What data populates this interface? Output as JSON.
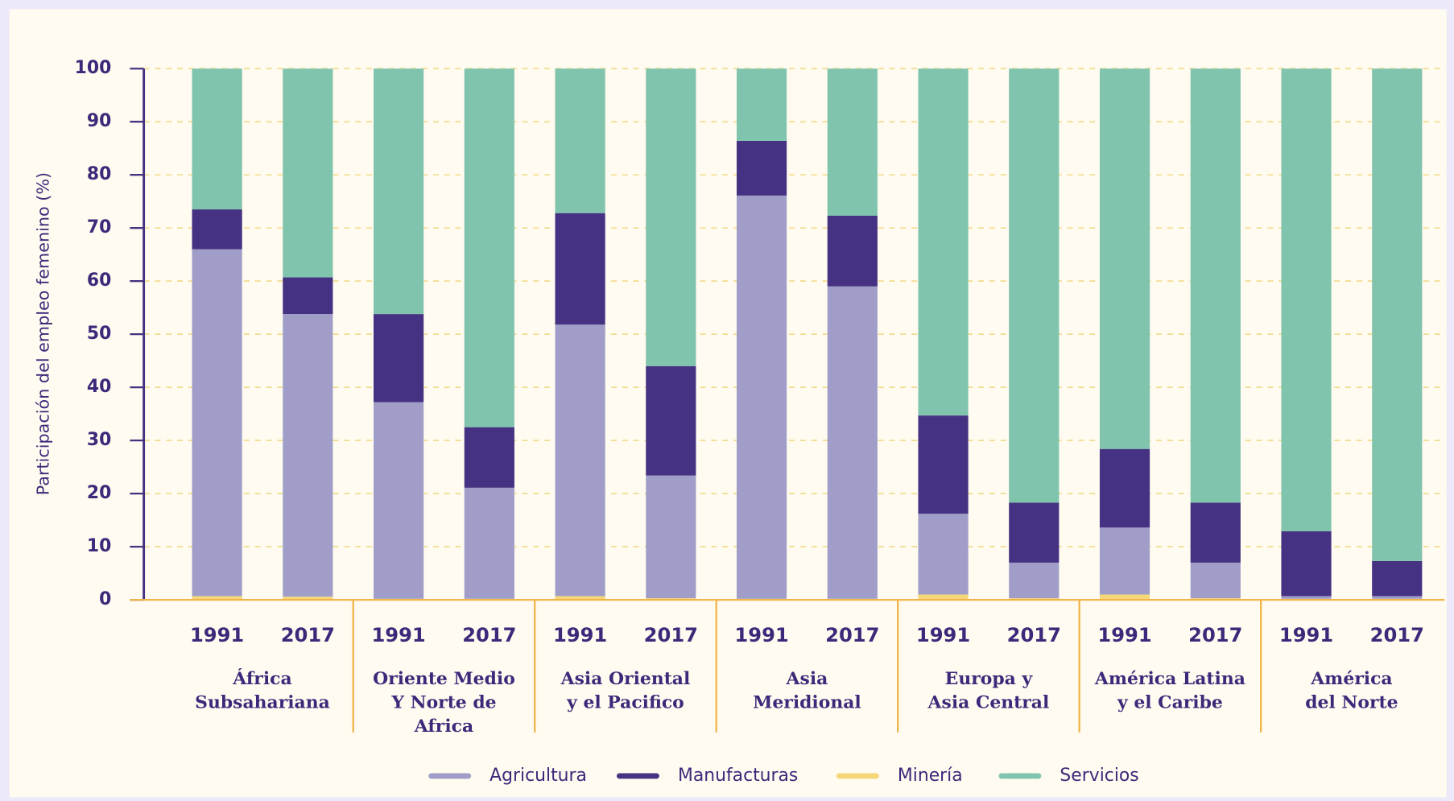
{
  "chart_data": {
    "type": "stacked_bar",
    "y_label": "Participación del empleo femenino (%)",
    "categories": [
      "1991",
      "2017",
      "1991",
      "2017",
      "1991",
      "2017",
      "1991",
      "2017",
      "1991",
      "2017",
      "1991",
      "2017",
      "1991",
      "2017"
    ],
    "groups": [
      {
        "label": [
          "África",
          "Subsahariana"
        ]
      },
      {
        "label": [
          "Oriente Medio",
          "Y Norte de",
          "Africa"
        ]
      },
      {
        "label": [
          "Asia Oriental",
          "y el Pacifico"
        ]
      },
      {
        "label": [
          "Asia",
          "Meridional"
        ]
      },
      {
        "label": [
          "Europa y",
          "Asia Central"
        ]
      },
      {
        "label": [
          "América Latina",
          "y el Caribe"
        ]
      },
      {
        "label": [
          "América",
          "del Norte"
        ]
      }
    ],
    "series": [
      {
        "name": "Agricultura",
        "color": "#a09ec9",
        "values": [
          65.3,
          53.2,
          37.0,
          20.9,
          51.1,
          23.1,
          75.9,
          58.8,
          15.2,
          6.7,
          12.6,
          6.7,
          0.5,
          0.5
        ]
      },
      {
        "name": "Manufacturas",
        "color": "#463282",
        "values": [
          7.5,
          6.9,
          16.6,
          11.4,
          21.0,
          20.6,
          10.3,
          13.3,
          18.5,
          11.3,
          14.8,
          11.3,
          12.2,
          6.6
        ]
      },
      {
        "name": "Minería",
        "color": "#f5d77a",
        "values": [
          0.7,
          0.6,
          0.2,
          0.2,
          0.7,
          0.3,
          0.2,
          0.2,
          1.0,
          0.3,
          1.0,
          0.3,
          0.2,
          0.2
        ]
      },
      {
        "name": "Servicios",
        "color": "#80c4ae",
        "values": [
          26.5,
          39.3,
          46.2,
          67.5,
          27.2,
          56.0,
          13.6,
          27.7,
          65.3,
          81.7,
          71.6,
          81.7,
          87.1,
          92.7
        ]
      }
    ],
    "ylim": [
      0,
      100
    ],
    "yticks": [
      0,
      10,
      20,
      30,
      40,
      50,
      60,
      70,
      80,
      90,
      100
    ],
    "grid": true
  }
}
